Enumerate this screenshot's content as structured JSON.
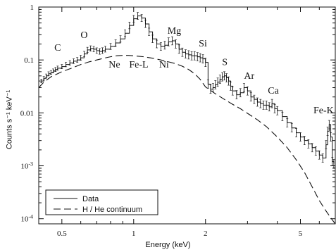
{
  "chart_data": {
    "type": "line",
    "title": "",
    "xlabel": "Energy (keV)",
    "ylabel": "Counts s⁻¹ keV⁻¹",
    "x_scale": "log",
    "y_scale": "log",
    "xlim": [
      0.4,
      7.0
    ],
    "ylim": [
      8e-05,
      1.0
    ],
    "grid": false,
    "legend_position": "bottom-left",
    "x_ticks": [
      {
        "value": 0.5,
        "label": "0.5"
      },
      {
        "value": 1,
        "label": "1"
      },
      {
        "value": 2,
        "label": "2"
      },
      {
        "value": 5,
        "label": "5"
      }
    ],
    "y_ticks": [
      {
        "value": 1,
        "label": "1",
        "base": "",
        "exp": ""
      },
      {
        "value": 0.1,
        "label": "0.1",
        "base": "",
        "exp": ""
      },
      {
        "value": 0.01,
        "label": "0.01",
        "base": "",
        "exp": ""
      },
      {
        "value": 0.001,
        "label": "",
        "base": "10",
        "exp": "-3"
      },
      {
        "value": 0.0001,
        "label": "",
        "base": "10",
        "exp": "-4"
      }
    ],
    "series": [
      {
        "name": "Data",
        "style": "solid",
        "x": [
          0.41,
          0.42,
          0.43,
          0.44,
          0.45,
          0.46,
          0.47,
          0.48,
          0.5,
          0.52,
          0.54,
          0.56,
          0.58,
          0.6,
          0.62,
          0.64,
          0.66,
          0.68,
          0.7,
          0.72,
          0.74,
          0.76,
          0.8,
          0.84,
          0.88,
          0.92,
          0.96,
          1.0,
          1.04,
          1.08,
          1.12,
          1.16,
          1.2,
          1.25,
          1.3,
          1.35,
          1.4,
          1.45,
          1.5,
          1.55,
          1.6,
          1.65,
          1.7,
          1.75,
          1.8,
          1.85,
          1.9,
          1.95,
          2.0,
          2.05,
          2.1,
          2.15,
          2.2,
          2.25,
          2.3,
          2.35,
          2.4,
          2.45,
          2.5,
          2.55,
          2.6,
          2.7,
          2.8,
          2.9,
          3.0,
          3.1,
          3.2,
          3.3,
          3.4,
          3.5,
          3.6,
          3.7,
          3.8,
          3.9,
          4.0,
          4.2,
          4.4,
          4.6,
          4.8,
          5.0,
          5.2,
          5.4,
          5.6,
          5.8,
          6.0,
          6.2,
          6.4,
          6.5,
          6.6,
          6.7,
          6.8,
          6.9
        ],
        "y": [
          0.04,
          0.045,
          0.05,
          0.055,
          0.058,
          0.062,
          0.066,
          0.07,
          0.075,
          0.082,
          0.088,
          0.095,
          0.1,
          0.11,
          0.13,
          0.155,
          0.165,
          0.16,
          0.15,
          0.145,
          0.15,
          0.16,
          0.18,
          0.21,
          0.25,
          0.32,
          0.45,
          0.6,
          0.68,
          0.62,
          0.48,
          0.34,
          0.25,
          0.2,
          0.18,
          0.19,
          0.22,
          0.23,
          0.2,
          0.16,
          0.14,
          0.13,
          0.125,
          0.12,
          0.12,
          0.115,
          0.11,
          0.105,
          0.09,
          0.035,
          0.028,
          0.03,
          0.034,
          0.038,
          0.043,
          0.048,
          0.05,
          0.046,
          0.04,
          0.032,
          0.026,
          0.022,
          0.024,
          0.03,
          0.026,
          0.02,
          0.018,
          0.016,
          0.015,
          0.014,
          0.014,
          0.013,
          0.015,
          0.012,
          0.011,
          0.0085,
          0.0065,
          0.0052,
          0.0042,
          0.0035,
          0.003,
          0.0026,
          0.0022,
          0.0019,
          0.0016,
          0.0014,
          0.0025,
          0.0045,
          0.006,
          0.0035,
          0.0012,
          0.0011
        ]
      },
      {
        "name": "H / He continuum",
        "style": "dashed",
        "x": [
          0.4,
          0.42,
          0.45,
          0.48,
          0.5,
          0.55,
          0.6,
          0.65,
          0.7,
          0.75,
          0.8,
          0.85,
          0.9,
          0.95,
          1.0,
          1.1,
          1.2,
          1.3,
          1.4,
          1.5,
          1.6,
          1.7,
          1.8,
          1.9,
          2.0,
          2.2,
          2.4,
          2.6,
          2.8,
          3.0,
          3.3,
          3.6,
          4.0,
          4.4,
          4.8,
          5.2,
          5.6,
          6.0,
          6.4,
          6.8,
          7.0
        ],
        "y": [
          0.03,
          0.038,
          0.048,
          0.055,
          0.06,
          0.07,
          0.082,
          0.092,
          0.1,
          0.108,
          0.115,
          0.12,
          0.122,
          0.122,
          0.12,
          0.115,
          0.108,
          0.1,
          0.092,
          0.085,
          0.076,
          0.066,
          0.055,
          0.043,
          0.031,
          0.023,
          0.018,
          0.0145,
          0.012,
          0.0098,
          0.0074,
          0.0055,
          0.0035,
          0.0022,
          0.0013,
          0.00075,
          0.0004,
          0.00022,
          0.00014,
          9.5e-05,
          8e-05
        ]
      }
    ],
    "annotations": [
      {
        "text": "C",
        "x": 0.48,
        "y": 0.15
      },
      {
        "text": "O",
        "x": 0.62,
        "y": 0.26
      },
      {
        "text": "Ne",
        "x": 0.83,
        "y": 0.072
      },
      {
        "text": "Fe-L",
        "x": 1.05,
        "y": 0.072
      },
      {
        "text": "Ni",
        "x": 1.34,
        "y": 0.072
      },
      {
        "text": "Mg",
        "x": 1.48,
        "y": 0.31
      },
      {
        "text": "Si",
        "x": 1.95,
        "y": 0.18
      },
      {
        "text": "S",
        "x": 2.41,
        "y": 0.08
      },
      {
        "text": "Ar",
        "x": 3.05,
        "y": 0.044
      },
      {
        "text": "Ca",
        "x": 3.85,
        "y": 0.023
      },
      {
        "text": "Fe-K",
        "x": 6.25,
        "y": 0.0098
      }
    ]
  }
}
